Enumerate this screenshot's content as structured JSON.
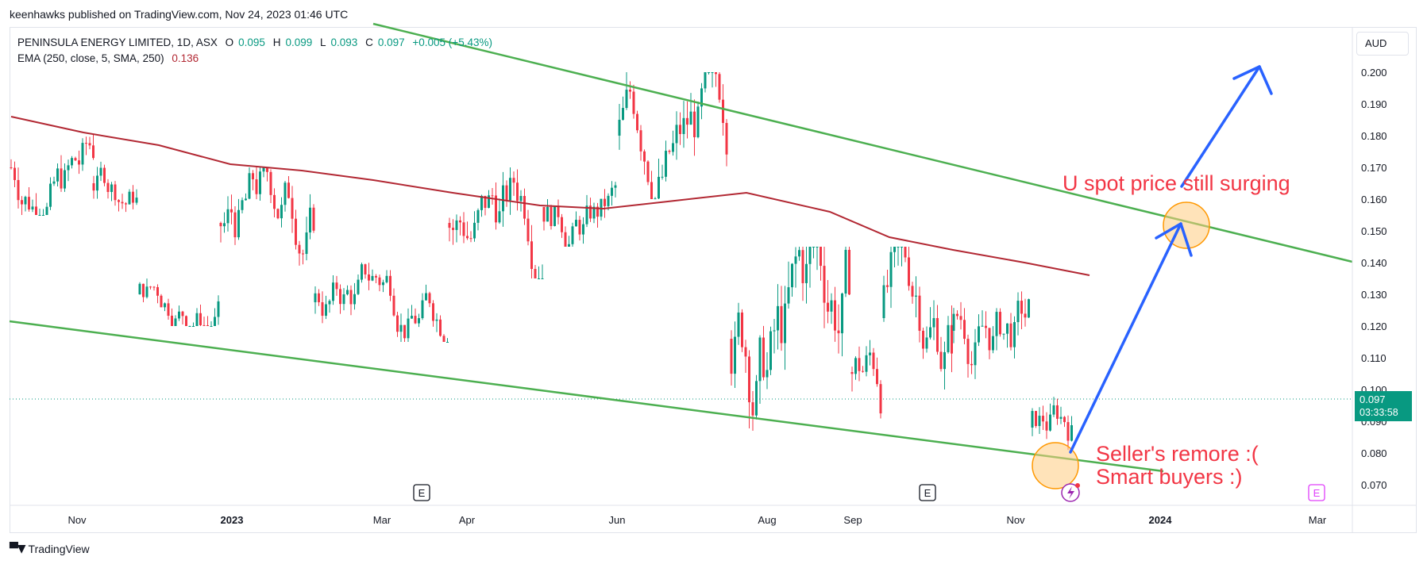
{
  "header": {
    "published_line": "keenhawks published on TradingView.com, Nov 24, 2023 01:46 UTC"
  },
  "legend": {
    "symbol": "PENINSULA ENERGY LIMITED, 1D, ASX",
    "o_label": "O",
    "o_value": "0.095",
    "h_label": "H",
    "h_value": "0.099",
    "l_label": "L",
    "l_value": "0.093",
    "c_label": "C",
    "c_value": "0.097",
    "change": "+0.005 (+5.43%)",
    "ema_label": "EMA (250, close, 5, SMA, 250)",
    "ema_value": "0.136"
  },
  "currency": "AUD",
  "last_price": {
    "value": "0.097",
    "countdown": "03:33:58"
  },
  "annotations": {
    "top_text": "U spot price still surging",
    "bottom_line1": "Seller's remore :(",
    "bottom_line2": "Smart buyers :)"
  },
  "earnings_marker_label": "E",
  "footer": {
    "brand": "TradingView"
  },
  "colors": {
    "up": "#089981",
    "down": "#f23645",
    "ema": "#b22833",
    "trendline": "#4caf50",
    "arrow": "#2962ff",
    "circle_fill": "#ffcc80",
    "circle_stroke": "#ff9800"
  },
  "chart_data": {
    "type": "candlestick",
    "x_axis_ticks": [
      "Nov",
      "2023",
      "Mar",
      "Apr",
      "Jun",
      "Aug",
      "Sep",
      "Nov",
      "2024",
      "Mar"
    ],
    "y_axis_ticks": [
      "0.070",
      "0.080",
      "0.090",
      "0.100",
      "0.110",
      "0.120",
      "0.130",
      "0.140",
      "0.150",
      "0.160",
      "0.170",
      "0.180",
      "0.190",
      "0.200"
    ],
    "ylim": [
      0.0645,
      0.2155
    ],
    "price_segments": [
      {
        "from": "Oct 2022",
        "to": "mid Nov 2022",
        "low": 0.155,
        "high": 0.185
      },
      {
        "from": "mid Nov 2022",
        "to": "early Dec 2022",
        "low": 0.155,
        "high": 0.175
      },
      {
        "from": "Dec 2022",
        "to": "Jan 2023",
        "low": 0.12,
        "high": 0.14
      },
      {
        "from": "Jan 2023",
        "to": "Mar 2023",
        "low": 0.135,
        "high": 0.17
      },
      {
        "from": "Mar 2023",
        "to": "early Apr 2023",
        "low": 0.115,
        "high": 0.14
      },
      {
        "from": "Apr 2023",
        "to": "May 2023",
        "low": 0.135,
        "high": 0.17
      },
      {
        "from": "May 2023",
        "to": "Jun 2023",
        "low": 0.145,
        "high": 0.17
      },
      {
        "from": "Jun 2023",
        "to": "Jul 2023",
        "low": 0.16,
        "high": 0.2
      },
      {
        "from": "late Jul 2023",
        "to": "Aug 2023",
        "low": 0.087,
        "high": 0.145
      },
      {
        "from": "Aug 2023",
        "to": "Sep 2023",
        "low": 0.086,
        "high": 0.125
      },
      {
        "from": "Sep 2023",
        "to": "Oct 2023",
        "low": 0.1,
        "high": 0.145
      },
      {
        "from": "Oct 2023",
        "to": "Nov 2023",
        "low": 0.102,
        "high": 0.135
      },
      {
        "from": "Nov 2023",
        "to": "Nov 24 2023",
        "low": 0.076,
        "high": 0.1
      }
    ],
    "ema_250": [
      {
        "x": "Oct 2022",
        "y": 0.186
      },
      {
        "x": "Nov 2022",
        "y": 0.181
      },
      {
        "x": "Dec 2022",
        "y": 0.177
      },
      {
        "x": "Jan 2023",
        "y": 0.171
      },
      {
        "x": "Feb 2023",
        "y": 0.169
      },
      {
        "x": "Mar 2023",
        "y": 0.166
      },
      {
        "x": "Apr 2023",
        "y": 0.162
      },
      {
        "x": "May 2023",
        "y": 0.158
      },
      {
        "x": "Jun 2023",
        "y": 0.157
      },
      {
        "x": "Jul 2023",
        "y": 0.162
      },
      {
        "x": "Aug 2023",
        "y": 0.156
      },
      {
        "x": "Sep 2023",
        "y": 0.148
      },
      {
        "x": "Oct 2023",
        "y": 0.144
      },
      {
        "x": "Nov 2023",
        "y": 0.14
      },
      {
        "x": "Nov 24 2023",
        "y": 0.136
      }
    ],
    "last_close": 0.097
  }
}
